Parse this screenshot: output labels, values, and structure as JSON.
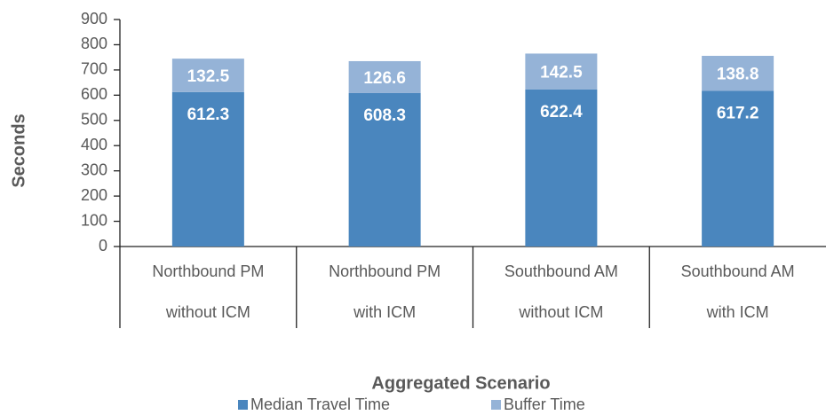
{
  "chart_data": {
    "type": "stacked_bar",
    "y_label": "Seconds",
    "x_label": "Aggregated Scenario",
    "categories": [
      [
        "Northbound PM",
        "without ICM"
      ],
      [
        "Northbound PM",
        "with ICM"
      ],
      [
        "Southbound AM",
        "without ICM"
      ],
      [
        "Southbound AM",
        "with ICM"
      ]
    ],
    "series": [
      {
        "name": "Median Travel Time",
        "color": "#4a86be",
        "values": [
          612.3,
          608.3,
          622.4,
          617.2
        ]
      },
      {
        "name": "Buffer Time",
        "color": "#95b3d7",
        "values": [
          132.5,
          126.6,
          142.5,
          138.8
        ]
      }
    ],
    "ylim": [
      0,
      900
    ],
    "yticks": [
      0,
      100,
      200,
      300,
      400,
      500,
      600,
      700,
      800,
      900
    ],
    "legend": "bottom"
  }
}
